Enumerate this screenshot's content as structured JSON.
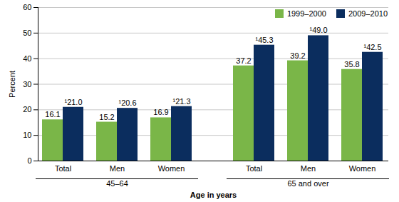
{
  "chart_data": {
    "type": "bar",
    "x_label": "Age in years",
    "y_label": "Percent",
    "groups": [
      {
        "label": "45–64",
        "categories": [
          "Total",
          "Men",
          "Women"
        ]
      },
      {
        "label": "65 and over",
        "categories": [
          "Total",
          "Men",
          "Women"
        ]
      }
    ],
    "series": [
      {
        "name": "1999–2000",
        "color": "#7ab648",
        "values": [
          16.1,
          15.2,
          16.9,
          37.2,
          39.2,
          35.8
        ]
      },
      {
        "name": "2009–2010",
        "color": "#0b2d5e",
        "values": [
          21.0,
          20.6,
          21.3,
          45.3,
          49.0,
          42.5
        ],
        "value_labels": [
          "¹21.0",
          "¹20.6",
          "¹21.3",
          "¹45.3",
          "¹49.0",
          "¹42.5"
        ]
      }
    ],
    "ylim": [
      0,
      60
    ],
    "yticks": [
      0,
      10,
      20,
      30,
      40,
      50,
      60
    ],
    "grid": true,
    "legend": "top-right",
    "data_labels": true
  }
}
